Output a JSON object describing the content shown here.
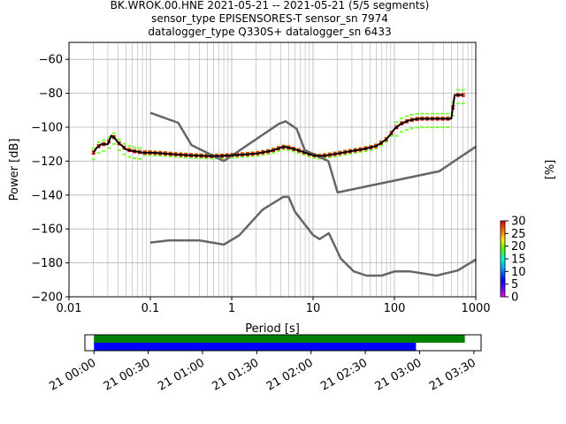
{
  "title_lines": [
    "BK.WROK.00.HNE   2021-05-21 -- 2021-05-21  (5/5 segments)",
    "sensor_type EPISENSORES-T sensor_sn 7974",
    "datalogger_type Q330S+ datalogger_sn 6433"
  ],
  "chart_data": [
    {
      "type": "line",
      "xlabel": "Period [s]",
      "ylabel": "Power [dB]",
      "xscale": "log",
      "xlim": [
        0.01,
        1000
      ],
      "ylim": [
        -200,
        -50
      ],
      "x_ticks": [
        {
          "v": 0.01,
          "label": "0.01"
        },
        {
          "v": 0.1,
          "label": "0.1"
        },
        {
          "v": 1,
          "label": "1"
        },
        {
          "v": 10,
          "label": "10"
        },
        {
          "v": 100,
          "label": "100"
        },
        {
          "v": 1000,
          "label": "1000"
        }
      ],
      "y_ticks": [
        {
          "v": -60,
          "label": "−60"
        },
        {
          "v": -80,
          "label": "−80"
        },
        {
          "v": -100,
          "label": "−100"
        },
        {
          "v": -120,
          "label": "−120"
        },
        {
          "v": -140,
          "label": "−140"
        },
        {
          "v": -160,
          "label": "−160"
        },
        {
          "v": -180,
          "label": "−180"
        },
        {
          "v": -200,
          "label": "−200"
        }
      ],
      "grid": true,
      "noise_model_color": "#666666",
      "mean_color": "#000000",
      "series": [
        {
          "role": "noise-model-high",
          "x": [
            0.1,
            0.22,
            0.32,
            0.8,
            3.8,
            4.6,
            6.3,
            7.9,
            15.4,
            20,
            354.8,
            1000
          ],
          "y": [
            -91.5,
            -97.4,
            -110.5,
            -120,
            -98,
            -96.5,
            -101,
            -113.5,
            -120,
            -138.5,
            -126,
            -111.5
          ]
        },
        {
          "role": "noise-model-low",
          "x": [
            0.1,
            0.17,
            0.4,
            0.8,
            1.24,
            2.4,
            4.3,
            5,
            6,
            10,
            12,
            15.6,
            21.9,
            31.6,
            45,
            70,
            101,
            154,
            328,
            600,
            1000
          ],
          "y": [
            -168,
            -166.7,
            -166.7,
            -169.2,
            -163.7,
            -148.6,
            -141.1,
            -141.1,
            -149.9,
            -163.6,
            -166,
            -162.5,
            -177.4,
            -185,
            -187.5,
            -187.5,
            -185,
            -185,
            -187.5,
            -184.5,
            -178
          ]
        },
        {
          "role": "mean",
          "x": [
            0.02,
            0.022,
            0.025,
            0.03,
            0.033,
            0.036,
            0.04,
            0.045,
            0.05,
            0.06,
            0.07,
            0.08,
            0.1,
            0.15,
            0.2,
            0.3,
            0.5,
            0.7,
            1,
            1.5,
            2,
            3,
            3.5,
            4,
            4.5,
            5,
            6,
            7,
            8,
            10,
            12,
            15,
            20,
            30,
            40,
            50,
            60,
            70,
            80,
            90,
            100,
            120,
            150,
            200,
            300,
            400,
            500,
            550,
            600,
            700
          ],
          "y": [
            -115,
            -112,
            -110,
            -110,
            -105,
            -106,
            -109,
            -111,
            -113,
            -114,
            -114.5,
            -115,
            -115,
            -115.5,
            -116,
            -116.5,
            -117,
            -117,
            -116.5,
            -116,
            -115.5,
            -114,
            -113,
            -112,
            -111.5,
            -112,
            -113,
            -114,
            -115,
            -116.5,
            -117,
            -116.5,
            -115.5,
            -114,
            -113,
            -112,
            -111,
            -109,
            -107,
            -104,
            -101,
            -98,
            -96,
            -95,
            -95,
            -95,
            -95,
            -81,
            -81,
            -81
          ]
        }
      ],
      "colorbar": {
        "label": "[%]",
        "range": [
          0,
          30
        ],
        "ticks": [
          "0",
          "5",
          "10",
          "15",
          "20",
          "25",
          "30"
        ]
      }
    },
    {
      "type": "timeline",
      "x_ticks": [
        "21 00:00",
        "21 00:30",
        "21 01:00",
        "21 01:30",
        "21 02:00",
        "21 02:30",
        "21 03:00",
        "21 03:30"
      ],
      "tick_minutes": [
        0,
        30,
        60,
        90,
        120,
        150,
        180,
        210
      ],
      "xlim_minutes": [
        -5,
        214
      ],
      "bars": [
        {
          "color": "#008000",
          "start_minute": 0,
          "end_minute": 205
        },
        {
          "color": "#0000ff",
          "start_minute": 0,
          "end_minute": 178
        }
      ]
    }
  ]
}
